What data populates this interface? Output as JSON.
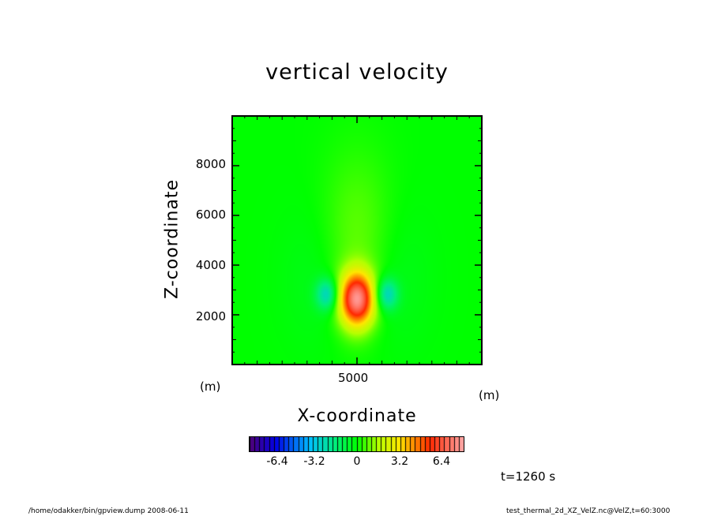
{
  "chart_data": {
    "type": "heatmap",
    "title": "vertical velocity",
    "xlabel": "X-coordinate",
    "ylabel": "Z-coordinate",
    "x_unit": "(m)",
    "y_unit": "(m)",
    "xlim": [
      0,
      10000
    ],
    "ylim": [
      0,
      10000
    ],
    "x_ticks": [
      "5000"
    ],
    "y_ticks": [
      "2000",
      "4000",
      "6000",
      "8000"
    ],
    "features": [
      {
        "kind": "updraft maximum",
        "x": 5000,
        "z": 2600,
        "value": 8.0
      },
      {
        "kind": "downdraft",
        "x": 3800,
        "z": 2800,
        "value": -3.0
      },
      {
        "kind": "downdraft",
        "x": 6200,
        "z": 2800,
        "value": -3.0
      }
    ],
    "colorbar": {
      "range": [
        -8.8,
        8.8
      ],
      "ticks": [
        "-6.4",
        "-3.2",
        "0",
        "3.2",
        "6.4"
      ],
      "colormap": "rainbow"
    },
    "grid": false
  },
  "annotations": {
    "time": "t=1260 s",
    "footer_left": "/home/odakker/bin/gpview.dump  2008-06-11",
    "footer_right": "test_thermal_2d_XZ_VelZ.nc@VelZ,t=60:3000"
  }
}
